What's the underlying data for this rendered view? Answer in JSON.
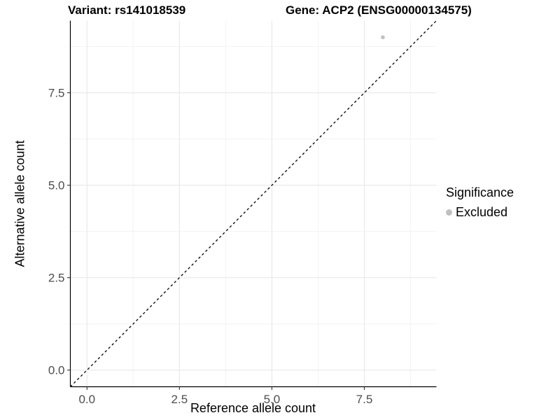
{
  "titles": {
    "variant": "Variant: rs141018539",
    "gene": "Gene: ACP2 (ENSG00000134575)"
  },
  "axes": {
    "x": {
      "label": "Reference allele count",
      "tick_labels": [
        "0.0",
        "2.5",
        "5.0",
        "7.5"
      ],
      "tick_values": [
        0,
        2.5,
        5,
        7.5
      ],
      "minor_values": [
        1.25,
        3.75,
        6.25,
        8.75
      ],
      "domain": [
        -0.45,
        9.45
      ]
    },
    "y": {
      "label": "Alternative allele count",
      "tick_labels": [
        "0.0",
        "2.5",
        "5.0",
        "7.5"
      ],
      "tick_values": [
        0,
        2.5,
        5,
        7.5
      ],
      "minor_values": [
        1.25,
        3.75,
        6.25,
        8.75
      ],
      "domain": [
        -0.45,
        9.45
      ]
    }
  },
  "legend": {
    "title": "Significance",
    "items": [
      {
        "label": "Excluded",
        "color": "#c0c0c0"
      }
    ]
  },
  "chart_data": {
    "type": "scatter",
    "title": "Variant: rs141018539 | Gene: ACP2 (ENSG00000134575)",
    "xlabel": "Reference allele count",
    "ylabel": "Alternative allele count",
    "xlim": [
      -0.45,
      9.45
    ],
    "ylim": [
      -0.45,
      9.45
    ],
    "x_ticks": [
      0,
      2.5,
      5,
      7.5
    ],
    "y_ticks": [
      0,
      2.5,
      5,
      7.5
    ],
    "grid": "major-and-minor",
    "legend_position": "right",
    "series": [
      {
        "name": "Excluded",
        "color": "#c0c0c0",
        "points": [
          {
            "x": 8,
            "y": 9
          }
        ]
      }
    ],
    "reference_line": {
      "type": "identity",
      "style": "dashed",
      "color": "#000000",
      "from": [
        -0.45,
        -0.45
      ],
      "to": [
        9.45,
        9.45
      ]
    }
  },
  "colors": {
    "point": "#c0c0c0",
    "grid_major": "#e8e8e8",
    "grid_minor": "#f3f3f3",
    "axis_line": "#000000",
    "tick": "#333333",
    "tick_label": "#4d4d4d",
    "reference_line": "#000000"
  }
}
